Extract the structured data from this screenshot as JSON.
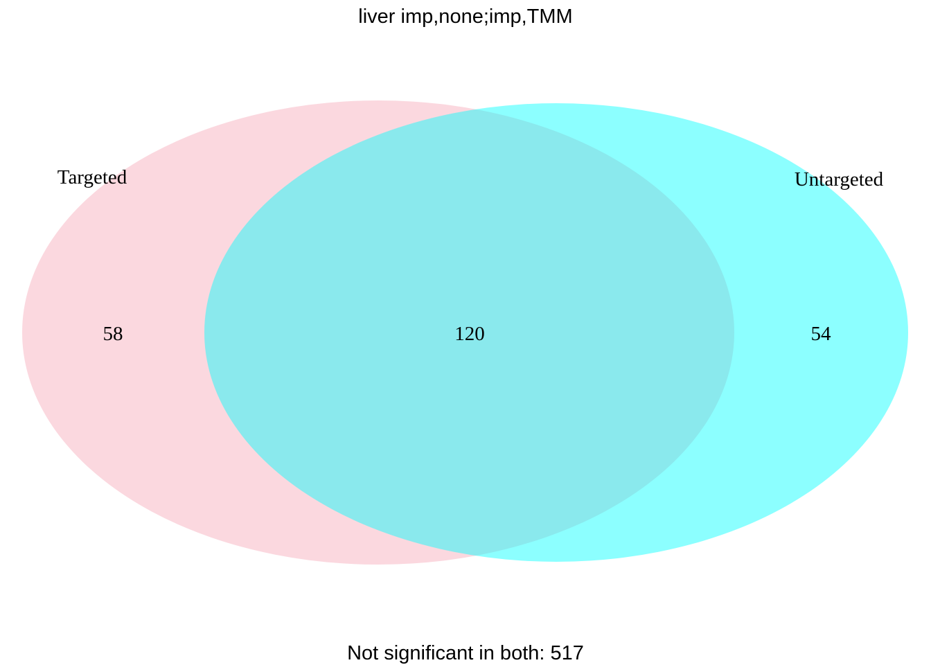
{
  "diagram": {
    "title": "liver imp,none;imp,TMM",
    "footer": "Not significant in both: 517",
    "sets": [
      {
        "name": "Targeted",
        "color": "#F8B2BF",
        "only_count": "58"
      },
      {
        "name": "Untargeted",
        "color": "#00FFFF",
        "only_count": "54"
      }
    ],
    "intersection_count": "120",
    "background": "#ffffff"
  }
}
